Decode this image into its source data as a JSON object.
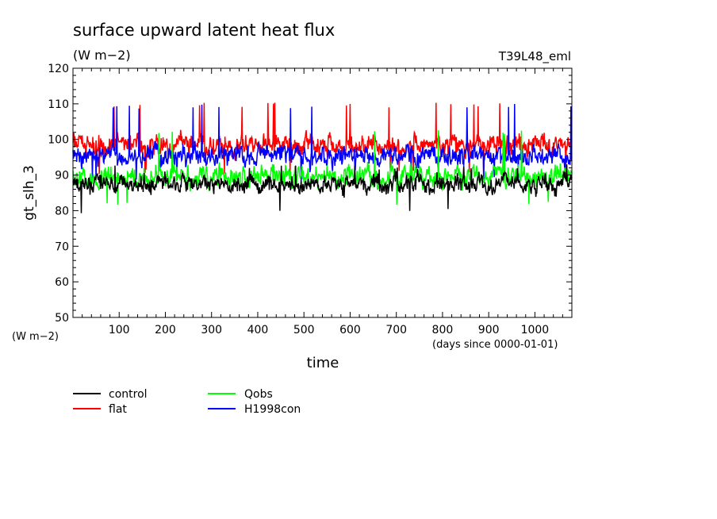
{
  "chart_data": {
    "type": "line",
    "title": "surface upward latent heat flux",
    "units_label": "(W m−2)",
    "run_label": "T39L48_eml",
    "ylabel": "gt_slh_3",
    "y_units_label": "(W m−2)",
    "xlabel": "time",
    "x_units_label": "(days since 0000-01-01)",
    "xlim": [
      0,
      1080
    ],
    "ylim": [
      50,
      120
    ],
    "xticks": [
      100,
      200,
      300,
      400,
      500,
      600,
      700,
      800,
      900,
      1000
    ],
    "yticks": [
      50,
      60,
      70,
      80,
      90,
      100,
      110,
      120
    ],
    "grid": false,
    "legend_position": "below",
    "series": [
      {
        "name": "control",
        "color": "#000000",
        "mean": 87.5,
        "amplitude": 3.0,
        "min": 79,
        "max": 93
      },
      {
        "name": "flat",
        "color": "#ff0000",
        "mean": 98.5,
        "amplitude": 3.5,
        "min": 90,
        "max": 110.5
      },
      {
        "name": "Qobs",
        "color": "#00ff00",
        "mean": 89.5,
        "amplitude": 3.5,
        "min": 81.5,
        "max": 103
      },
      {
        "name": "H1998con",
        "color": "#0000ff",
        "mean": 95.5,
        "amplitude": 3.5,
        "min": 88,
        "max": 110
      }
    ]
  }
}
